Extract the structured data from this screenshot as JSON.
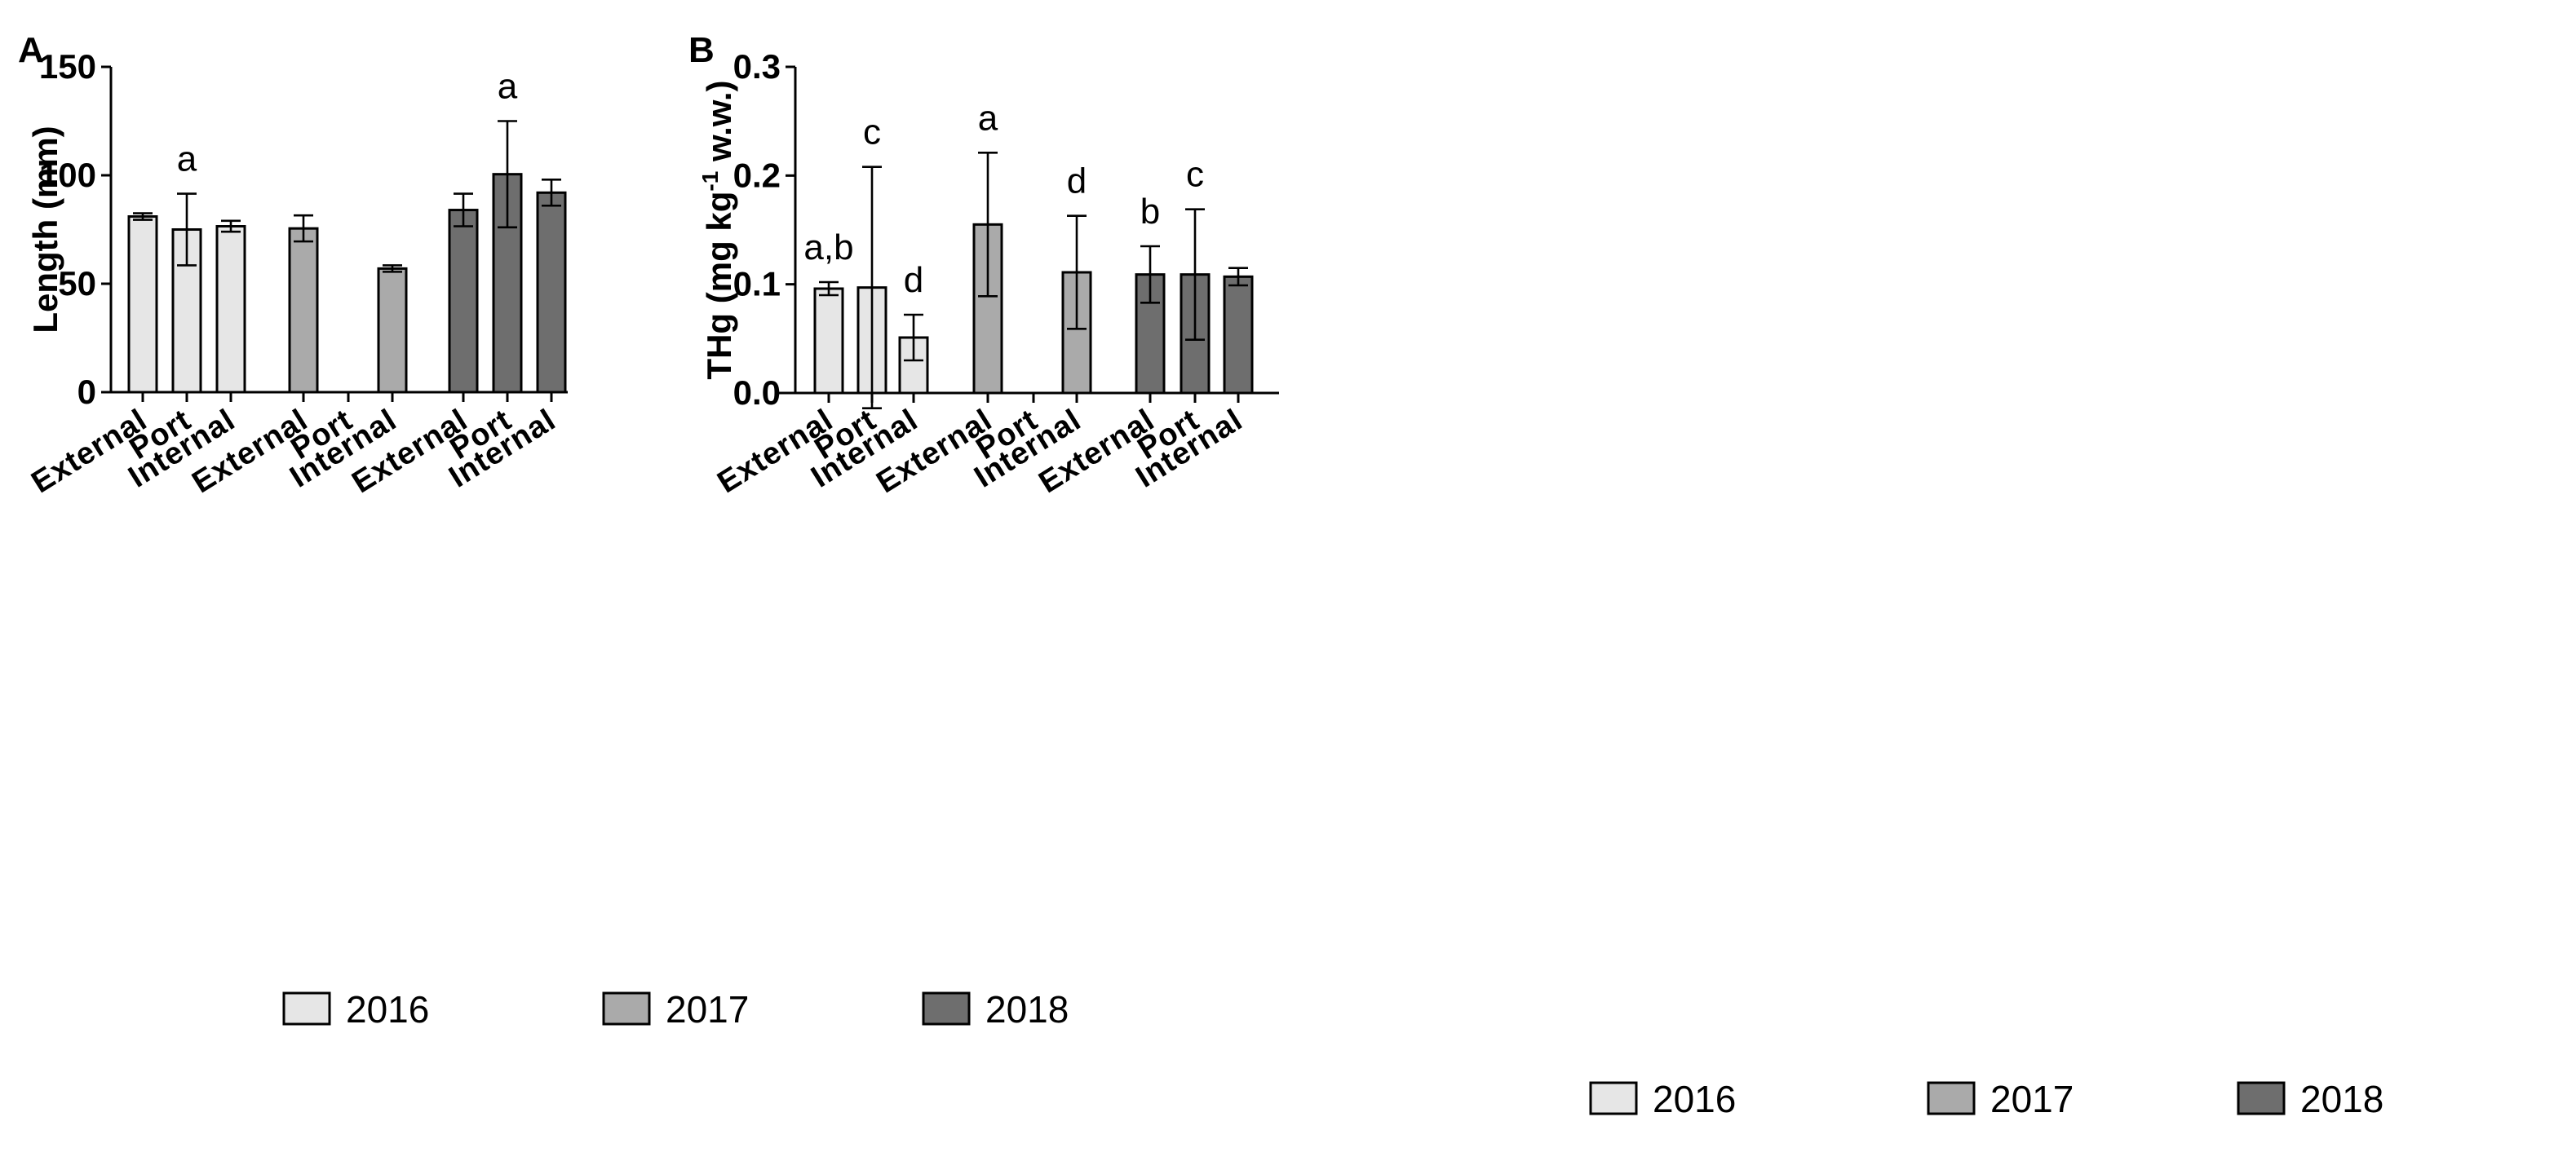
{
  "chart_data": [
    {
      "panel": "A",
      "type": "bar",
      "ylabel": "Length (mm)",
      "ylim": [
        0,
        150
      ],
      "yticks": [
        0,
        50,
        100,
        150
      ],
      "ytick_labels": [
        "0",
        "50",
        "100",
        "150"
      ],
      "categories": [
        "External",
        "Port",
        "Internal",
        "External",
        "Port",
        "Internal",
        "External",
        "Port",
        "Internal"
      ],
      "groups": [
        "2016",
        "2016",
        "2016",
        "2017",
        "2017",
        "2017",
        "2018",
        "2018",
        "2018"
      ],
      "values": [
        81,
        75,
        76.5,
        75.5,
        null,
        57,
        84,
        100.5,
        92
      ],
      "errors": [
        1.5,
        16.5,
        2.5,
        6,
        null,
        1.5,
        7.5,
        24.5,
        6
      ],
      "significance": [
        "",
        "a",
        "",
        "",
        "",
        "",
        "",
        "a",
        ""
      ],
      "legend": [
        {
          "label": "2016",
          "color": "#e6e6e6"
        },
        {
          "label": "2017",
          "color": "#aaaaaa"
        },
        {
          "label": "2018",
          "color": "#6e6e6e"
        }
      ],
      "legend_placement": "bottom"
    },
    {
      "panel": "B",
      "type": "bar",
      "ylabel": "THg (mg kg",
      "ylabel_sup": "-1",
      "ylabel_tail": " w.w.)",
      "ylim": [
        0,
        0.3
      ],
      "yticks": [
        0,
        0.1,
        0.2,
        0.3
      ],
      "ytick_labels": [
        "0.0",
        "0.1",
        "0.2",
        "0.3"
      ],
      "categories": [
        "External",
        "Port",
        "Internal",
        "External",
        "Port",
        "Internal",
        "External",
        "Port",
        "Internal"
      ],
      "groups": [
        "2016",
        "2016",
        "2016",
        "2017",
        "2017",
        "2017",
        "2018",
        "2018",
        "2018"
      ],
      "values": [
        0.096,
        0.097,
        0.051,
        0.155,
        null,
        0.111,
        0.109,
        0.109,
        0.107
      ],
      "errors": [
        0.006,
        0.111,
        0.021,
        0.066,
        null,
        0.052,
        0.026,
        0.06,
        0.008
      ],
      "significance": [
        "a,b",
        "c",
        "d",
        "a",
        "",
        "d",
        "b",
        "c",
        ""
      ],
      "legend": [
        {
          "label": "2016",
          "color": "#e6e6e6"
        },
        {
          "label": "2017",
          "color": "#aaaaaa"
        },
        {
          "label": "2018",
          "color": "#6e6e6e"
        }
      ],
      "legend_placement": "bottom"
    }
  ]
}
